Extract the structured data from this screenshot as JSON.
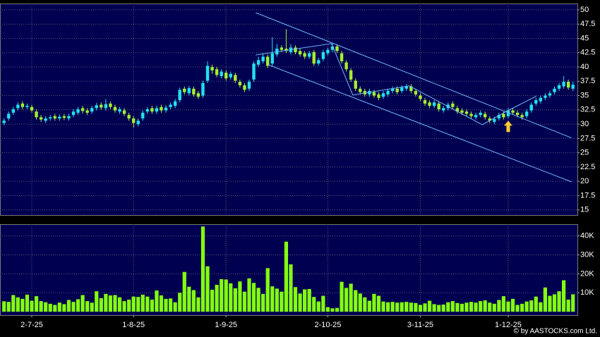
{
  "chart_data": [
    {
      "type": "candlestick",
      "xlim": [
        -0.87,
        123.96
      ],
      "ylim": [
        14.1,
        51.1
      ],
      "yticks": [
        15,
        17.5,
        20,
        22.5,
        25,
        27.5,
        30,
        32.5,
        35,
        37.5,
        40,
        42.5,
        45,
        47.5,
        50
      ],
      "grid": true,
      "up_color": "#22e0f0",
      "down_color": "#a6ee30",
      "line_color": "#6fb8ff",
      "arrow_color": "#ffcc33",
      "open": [
        30.2,
        31.0,
        32.0,
        32.8,
        33.6,
        33.0,
        33.0,
        32.2,
        31.2,
        30.6,
        31.0,
        31.4,
        31.0,
        31.4,
        31.0,
        31.6,
        32.0,
        32.8,
        32.4,
        32.2,
        32.8,
        33.4,
        32.8,
        33.6,
        33.0,
        32.2,
        32.4,
        31.6,
        31.0,
        30.0,
        31.0,
        32.2,
        32.8,
        32.2,
        33.0,
        32.4,
        33.0,
        33.2,
        34.2,
        36.2,
        35.4,
        36.2,
        35.4,
        35.0,
        37.6,
        40.0,
        39.6,
        38.4,
        39.0,
        38.2,
        38.6,
        37.4,
        36.8,
        36.2,
        37.8,
        40.4,
        41.0,
        41.8,
        40.6,
        42.2,
        43.4,
        43.2,
        42.6,
        43.4,
        42.8,
        42.4,
        41.8,
        42.6,
        40.6,
        41.4,
        42.4,
        43.0,
        43.6,
        42.4,
        40.8,
        39.4,
        37.6,
        36.2,
        35.8,
        35.2,
        35.6,
        35.2,
        34.8,
        35.2,
        35.8,
        36.2,
        35.8,
        36.2,
        36.6,
        35.8,
        35.0,
        34.2,
        33.8,
        33.2,
        33.6,
        32.4,
        32.8,
        33.6,
        32.8,
        32.4,
        32.2,
        31.8,
        31.2,
        31.6,
        31.8,
        31.0,
        30.4,
        31.0,
        31.8,
        31.4,
        32.4,
        32.0,
        31.6,
        31.4,
        32.4,
        33.6,
        34.0,
        34.6,
        35.0,
        35.6,
        36.2,
        36.6,
        37.4,
        36.2
      ],
      "high": [
        31.0,
        32.2,
        33.0,
        33.8,
        34.0,
        33.6,
        33.4,
        32.6,
        31.6,
        31.4,
        31.6,
        31.8,
        31.7,
        31.8,
        31.8,
        32.6,
        33.0,
        33.2,
        32.8,
        33.2,
        33.7,
        33.8,
        34.4,
        34.0,
        33.4,
        33.0,
        32.8,
        32.0,
        31.4,
        31.0,
        32.4,
        33.0,
        33.2,
        33.2,
        33.4,
        33.3,
        33.8,
        34.4,
        36.4,
        36.6,
        36.7,
        36.6,
        35.8,
        37.6,
        41.0,
        40.4,
        40.0,
        39.6,
        39.4,
        39.2,
        39.0,
        37.8,
        37.2,
        37.8,
        41.0,
        41.8,
        42.4,
        42.2,
        45.2,
        44.0,
        43.8,
        46.6,
        44.0,
        43.8,
        43.2,
        42.8,
        42.8,
        43.0,
        41.6,
        43.0,
        43.4,
        44.2,
        44.0,
        42.8,
        41.2,
        39.8,
        38.0,
        36.6,
        36.2,
        36.2,
        36.0,
        35.6,
        35.8,
        36.2,
        36.6,
        36.6,
        36.8,
        37.0,
        37.0,
        36.2,
        35.4,
        34.6,
        34.2,
        34.2,
        34.0,
        33.2,
        33.8,
        34.0,
        33.2,
        32.8,
        32.6,
        32.2,
        32.0,
        32.4,
        32.2,
        31.4,
        31.3,
        32.0,
        32.2,
        32.8,
        32.8,
        32.4,
        32.0,
        32.6,
        33.8,
        34.6,
        35.0,
        35.4,
        35.8,
        36.6,
        37.2,
        38.4,
        37.8,
        37.4
      ],
      "low": [
        29.8,
        30.6,
        31.6,
        32.4,
        32.6,
        32.6,
        32.0,
        30.8,
        30.4,
        30.2,
        30.6,
        30.6,
        30.6,
        30.7,
        30.6,
        31.2,
        31.6,
        31.9,
        31.6,
        31.8,
        32.4,
        32.5,
        32.4,
        32.6,
        32.0,
        31.8,
        31.4,
        30.6,
        29.4,
        29.6,
        30.6,
        31.8,
        31.8,
        31.8,
        32.0,
        32.0,
        32.6,
        32.8,
        33.8,
        35.2,
        35.0,
        34.8,
        34.4,
        34.6,
        37.2,
        38.8,
        38.2,
        38.0,
        37.6,
        37.8,
        37.2,
        36.4,
        35.6,
        35.8,
        37.4,
        40.0,
        40.6,
        39.8,
        40.2,
        41.8,
        42.6,
        42.4,
        42.2,
        42.2,
        41.8,
        41.4,
        41.4,
        40.2,
        40.2,
        41.0,
        42.0,
        42.6,
        42.4,
        40.6,
        39.2,
        37.4,
        35.8,
        35.2,
        34.8,
        34.8,
        34.6,
        34.2,
        34.4,
        34.8,
        35.4,
        35.2,
        35.4,
        35.8,
        35.4,
        34.8,
        34.0,
        33.2,
        32.8,
        32.8,
        32.2,
        32.0,
        32.4,
        32.6,
        31.8,
        31.6,
        31.4,
        31.0,
        30.8,
        31.2,
        30.8,
        30.2,
        30.0,
        30.6,
        30.8,
        31.0,
        31.6,
        31.2,
        30.8,
        31.0,
        32.0,
        33.2,
        33.6,
        34.2,
        34.6,
        35.2,
        35.8,
        36.2,
        36.0,
        35.8
      ],
      "close": [
        30.6,
        31.8,
        32.6,
        33.4,
        33.0,
        33.2,
        32.4,
        31.2,
        30.8,
        31.0,
        31.2,
        31.0,
        31.3,
        31.1,
        31.4,
        32.2,
        32.6,
        32.3,
        32.0,
        32.8,
        33.3,
        32.9,
        33.5,
        33.0,
        32.4,
        32.6,
        31.8,
        31.0,
        30.2,
        30.6,
        32.0,
        32.6,
        32.2,
        32.8,
        32.4,
        32.9,
        33.4,
        34.0,
        36.0,
        35.6,
        36.3,
        35.2,
        34.8,
        37.2,
        40.2,
        39.4,
        38.6,
        39.2,
        38.0,
        38.8,
        37.6,
        36.8,
        36.0,
        37.4,
        40.6,
        41.2,
        41.8,
        40.2,
        42.4,
        43.2,
        43.0,
        42.8,
        43.4,
        42.6,
        42.2,
        41.8,
        42.4,
        40.6,
        41.2,
        42.6,
        43.0,
        43.6,
        42.8,
        41.0,
        39.6,
        37.8,
        36.2,
        35.6,
        35.2,
        35.8,
        35.0,
        34.6,
        35.4,
        35.8,
        36.2,
        35.6,
        36.4,
        36.6,
        35.8,
        35.2,
        34.4,
        33.6,
        33.2,
        33.8,
        32.6,
        32.8,
        33.4,
        33.0,
        32.2,
        32.0,
        31.8,
        31.4,
        31.6,
        32.0,
        31.2,
        30.6,
        30.9,
        31.6,
        31.2,
        32.4,
        32.0,
        31.6,
        31.2,
        32.2,
        33.4,
        34.2,
        34.6,
        35.0,
        35.4,
        36.2,
        36.8,
        37.4,
        36.4,
        36.9
      ],
      "trendlines": [
        {
          "points": [
            [
              54.4,
              49.5
            ],
            [
              122.7,
              27.6
            ]
          ]
        },
        {
          "points": [
            [
              57.1,
              40.4
            ],
            [
              122.7,
              19.9
            ]
          ]
        },
        {
          "points": [
            [
              54.4,
              42.1
            ],
            [
              70.8,
              44.1
            ],
            [
              75.4,
              35.1
            ],
            [
              87.6,
              36.7
            ],
            [
              103.4,
              29.9
            ],
            [
              109,
              32.4
            ],
            [
              115.1,
              34.9
            ]
          ]
        }
      ],
      "arrow": {
        "x": 109,
        "y": 30.6
      }
    },
    {
      "type": "bar",
      "xlim": [
        -0.87,
        123.96
      ],
      "ylim": [
        -1800,
        46200
      ],
      "yticks": [
        {
          "value": 10000,
          "label": "10K"
        },
        {
          "value": 20000,
          "label": "20K"
        },
        {
          "value": 30000,
          "label": "30K"
        },
        {
          "value": 40000,
          "label": "40K"
        }
      ],
      "xticks": [
        {
          "value": 6,
          "label": "2-7-25"
        },
        {
          "value": 28,
          "label": "1-8-25"
        },
        {
          "value": 48,
          "label": "1-9-25"
        },
        {
          "value": 70,
          "label": "2-10-25"
        },
        {
          "value": 90,
          "label": "3-11-25"
        },
        {
          "value": 109,
          "label": "1-12-25"
        }
      ],
      "grid": true,
      "color": "#84ff10",
      "values": [
        5500,
        5200,
        8800,
        7600,
        6800,
        9000,
        5800,
        8200,
        5600,
        5000,
        4200,
        3600,
        4800,
        4000,
        6200,
        5200,
        6600,
        8800,
        5600,
        4800,
        10800,
        7200,
        9400,
        8600,
        8800,
        7600,
        5600,
        6400,
        8000,
        7800,
        9000,
        8000,
        6400,
        11200,
        8600,
        6800,
        7000,
        5000,
        10000,
        21000,
        13200,
        11400,
        7600,
        45000,
        24000,
        11600,
        14200,
        17200,
        17000,
        15000,
        12400,
        16000,
        10600,
        17600,
        15200,
        12600,
        9400,
        23000,
        13400,
        12200,
        10600,
        37000,
        25000,
        13000,
        9600,
        11800,
        12000,
        7800,
        5400,
        8400,
        2400,
        1800,
        2000,
        15800,
        12600,
        14800,
        11400,
        9600,
        7600,
        5800,
        9400,
        8400,
        5400,
        5000,
        5200,
        4800,
        5000,
        5200,
        4800,
        4600,
        3600,
        4400,
        5800,
        4000,
        3600,
        3800,
        5000,
        5600,
        4600,
        4200,
        4800,
        5200,
        4800,
        5600,
        6000,
        4800,
        4200,
        6200,
        8200,
        5400,
        6800,
        3600,
        4200,
        5400,
        6000,
        8000,
        5000,
        12800,
        8400,
        9200,
        10800,
        16600,
        6400,
        9200
      ],
      "source": "© by AASTOCKS.com Ltd."
    }
  ]
}
